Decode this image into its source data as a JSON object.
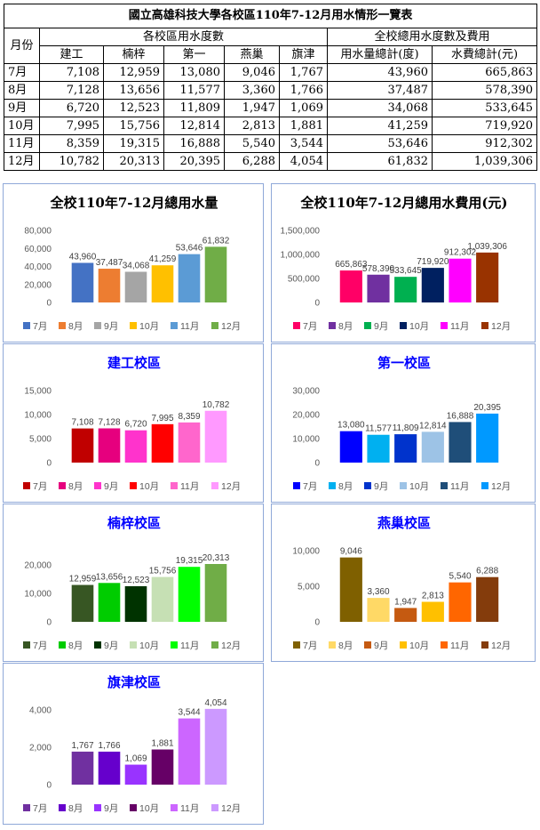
{
  "table": {
    "title": "國立高雄科技大學各校區110年7-12月用水情形一覽表",
    "month_header": "月份",
    "campus_group_header": "各校區用水度數",
    "total_group_header": "全校總用水度數及費用",
    "campus_headers": [
      "建工",
      "楠梓",
      "第一",
      "燕巢",
      "旗津"
    ],
    "total_headers": [
      "用水量總計(度)",
      "水費總計(元)"
    ],
    "rows": [
      {
        "month": "7月",
        "values": [
          "7,108",
          "12,959",
          "13,080",
          "9,046",
          "1,767",
          "43,960",
          "665,863"
        ]
      },
      {
        "month": "8月",
        "values": [
          "7,128",
          "13,656",
          "11,577",
          "3,360",
          "1,766",
          "37,487",
          "578,390"
        ]
      },
      {
        "month": "9月",
        "values": [
          "6,720",
          "12,523",
          "11,809",
          "1,947",
          "1,069",
          "34,068",
          "533,645"
        ]
      },
      {
        "month": "10月",
        "values": [
          "7,995",
          "15,756",
          "12,814",
          "2,813",
          "1,881",
          "41,259",
          "719,920"
        ]
      },
      {
        "month": "11月",
        "values": [
          "8,359",
          "19,315",
          "16,888",
          "5,540",
          "3,544",
          "53,646",
          "912,302"
        ]
      },
      {
        "month": "12月",
        "values": [
          "10,782",
          "20,313",
          "20,395",
          "6,288",
          "4,054",
          "61,832",
          "1,039,306"
        ]
      }
    ]
  },
  "chart_data": [
    {
      "type": "bar",
      "title": "全校110年7-12月總用水量",
      "title_color": "#000000",
      "categories": [
        "7月",
        "8月",
        "9月",
        "10月",
        "11月",
        "12月"
      ],
      "values": [
        43960,
        37487,
        34068,
        41259,
        53646,
        61832
      ],
      "labels": [
        "43,960",
        "37,487",
        "34,068",
        "41,259",
        "53,646",
        "61,832"
      ],
      "colors": [
        "#4472c4",
        "#ed7d31",
        "#a5a5a5",
        "#ffc000",
        "#5b9bd5",
        "#70ad47"
      ],
      "ylim": [
        0,
        80000
      ],
      "yticks": [
        0,
        20000,
        40000,
        60000,
        80000
      ],
      "ytick_labels": [
        "0",
        "20,000",
        "40,000",
        "60,000",
        "80,000"
      ],
      "legend_position": "bottom",
      "grid": false
    },
    {
      "type": "bar",
      "title": "全校110年7-12月總用水費用(元)",
      "title_color": "#000000",
      "categories": [
        "7月",
        "8月",
        "9月",
        "10月",
        "11月",
        "12月"
      ],
      "values": [
        665863,
        578390,
        533645,
        719920,
        912302,
        1039306
      ],
      "labels": [
        "665,863",
        "578,390",
        "533,645",
        "719,920",
        "912,302",
        "1,039,306"
      ],
      "colors": [
        "#ff0066",
        "#7030a0",
        "#00b050",
        "#002060",
        "#ff00ff",
        "#993300"
      ],
      "ylim": [
        0,
        1500000
      ],
      "yticks": [
        0,
        500000,
        1000000,
        1500000
      ],
      "ytick_labels": [
        "0",
        "500,000",
        "1,000,000",
        "1,500,000"
      ],
      "legend_position": "bottom",
      "grid": false
    },
    {
      "type": "bar",
      "title": "建工校區",
      "title_color": "#0000ff",
      "categories": [
        "7月",
        "8月",
        "9月",
        "10月",
        "11月",
        "12月"
      ],
      "values": [
        7108,
        7128,
        6720,
        7995,
        8359,
        10782
      ],
      "labels": [
        "7,108",
        "7,128",
        "6,720",
        "7,995",
        "8,359",
        "10,782"
      ],
      "colors": [
        "#c00000",
        "#e6007e",
        "#ff33cc",
        "#ff0000",
        "#ff66cc",
        "#ff99ff"
      ],
      "ylim": [
        0,
        15000
      ],
      "yticks": [
        0,
        5000,
        10000,
        15000
      ],
      "ytick_labels": [
        "0",
        "5,000",
        "10,000",
        "15,000"
      ],
      "legend_position": "bottom",
      "grid": false
    },
    {
      "type": "bar",
      "title": "第一校區",
      "title_color": "#0000ff",
      "categories": [
        "7月",
        "8月",
        "9月",
        "10月",
        "11月",
        "12月"
      ],
      "values": [
        13080,
        11577,
        11809,
        12814,
        16888,
        20395
      ],
      "labels": [
        "13,080",
        "11,577",
        "11,809",
        "12,814",
        "16,888",
        "20,395"
      ],
      "colors": [
        "#0000ff",
        "#00b0f0",
        "#0033cc",
        "#9dc3e6",
        "#1f4e79",
        "#0099ff"
      ],
      "ylim": [
        0,
        30000
      ],
      "yticks": [
        0,
        10000,
        20000,
        30000
      ],
      "ytick_labels": [
        "0",
        "10,000",
        "20,000",
        "30,000"
      ],
      "legend_position": "bottom",
      "grid": false
    },
    {
      "type": "bar",
      "title": "楠梓校區",
      "title_color": "#0000ff",
      "categories": [
        "7月",
        "8月",
        "9月",
        "10月",
        "11月",
        "12月"
      ],
      "values": [
        12959,
        13656,
        12523,
        15756,
        19315,
        20313
      ],
      "labels": [
        "12,959",
        "13,656",
        "12,523",
        "15,756",
        "19,315",
        "20,313"
      ],
      "colors": [
        "#375623",
        "#00cc00",
        "#003300",
        "#c6e0b4",
        "#00ff00",
        "#70ad47"
      ],
      "ylim": [
        0,
        25000
      ],
      "yticks": [
        0,
        10000,
        20000
      ],
      "ytick_labels": [
        "0",
        "10,000",
        "20,000"
      ],
      "legend_position": "bottom",
      "grid": false
    },
    {
      "type": "bar",
      "title": "燕巢校區",
      "title_color": "#0000ff",
      "categories": [
        "7月",
        "8月",
        "9月",
        "10月",
        "11月",
        "12月"
      ],
      "values": [
        9046,
        3360,
        1947,
        2813,
        5540,
        6288
      ],
      "labels": [
        "9,046",
        "3,360",
        "1,947",
        "2,813",
        "5,540",
        "6,288"
      ],
      "colors": [
        "#7f6000",
        "#ffd966",
        "#c55a11",
        "#ffc000",
        "#ff6600",
        "#843c0c"
      ],
      "ylim": [
        0,
        10000
      ],
      "yticks": [
        0,
        5000,
        10000
      ],
      "ytick_labels": [
        "0",
        "5,000",
        "10,000"
      ],
      "legend_position": "bottom",
      "grid": false
    },
    {
      "type": "bar",
      "title": "旗津校區",
      "title_color": "#0000ff",
      "categories": [
        "7月",
        "8月",
        "9月",
        "10月",
        "11月",
        "12月"
      ],
      "values": [
        1767,
        1766,
        1069,
        1881,
        3544,
        4054
      ],
      "labels": [
        "1,767",
        "1,766",
        "1,069",
        "1,881",
        "3,544",
        "4,054"
      ],
      "colors": [
        "#7030a0",
        "#6600cc",
        "#9933ff",
        "#660066",
        "#cc66ff",
        "#cc99ff"
      ],
      "ylim": [
        0,
        4000
      ],
      "yticks": [
        0,
        2000,
        4000
      ],
      "ytick_labels": [
        "0",
        "2,000",
        "4,000"
      ],
      "legend_position": "bottom",
      "grid": false
    }
  ]
}
